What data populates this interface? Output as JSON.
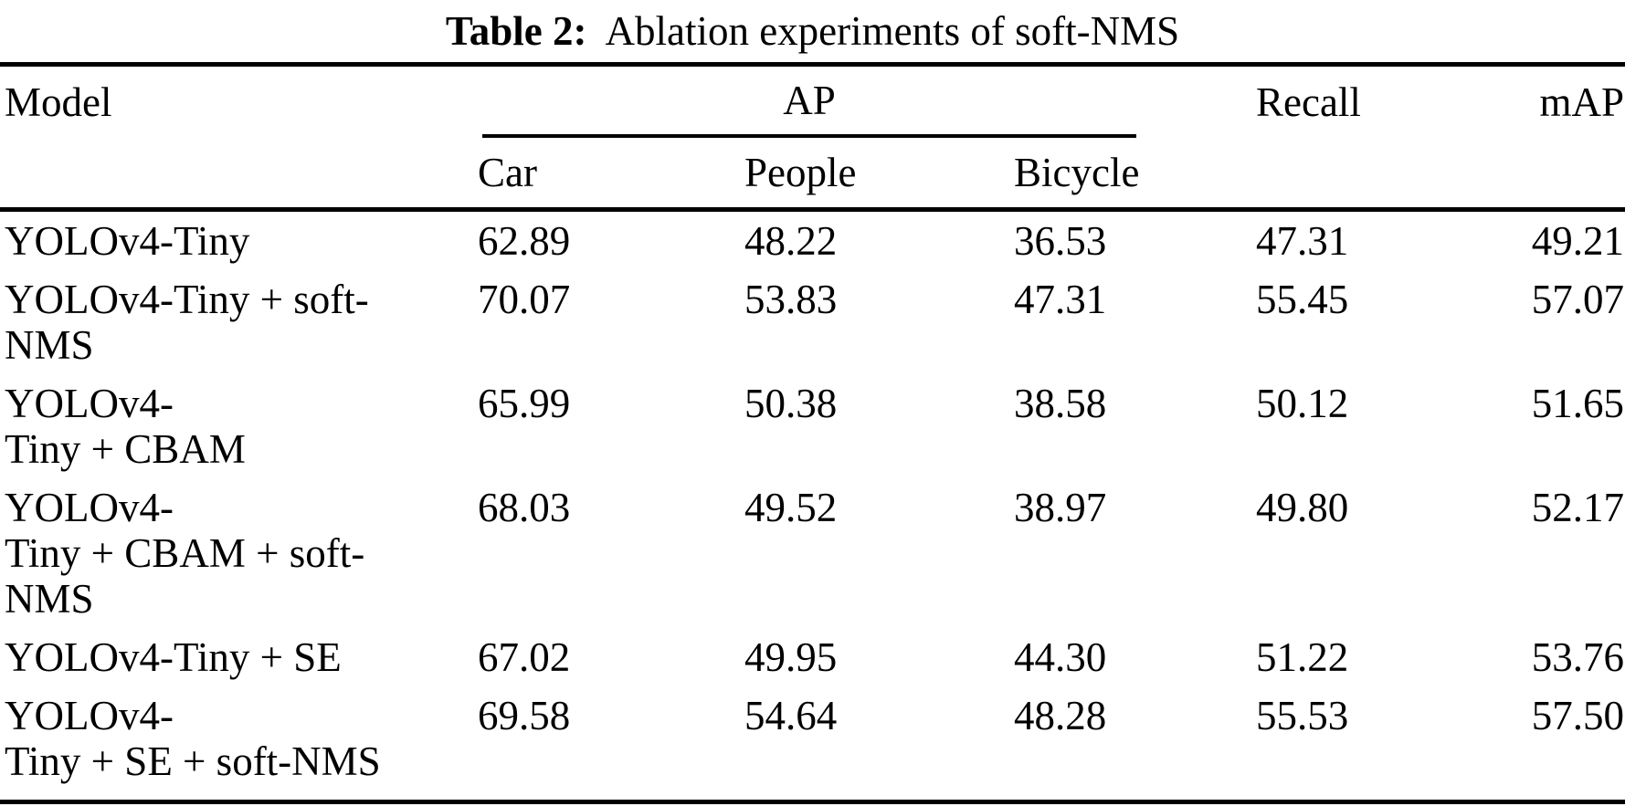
{
  "caption": {
    "label": "Table 2:",
    "text": "Ablation experiments of soft-NMS"
  },
  "table": {
    "columns": {
      "model": "Model",
      "ap_group": "AP",
      "ap_sub": [
        "Car",
        "People",
        "Bicycle"
      ],
      "recall": "Recall",
      "map": "mAP"
    },
    "rows": [
      {
        "model_lines": [
          "YOLOv4-Tiny"
        ],
        "car": "62.89",
        "people": "48.22",
        "bicycle": "36.53",
        "recall": "47.31",
        "map": "49.21"
      },
      {
        "model_lines": [
          "YOLOv4-Tiny + soft-",
          "NMS"
        ],
        "car": "70.07",
        "people": "53.83",
        "bicycle": "47.31",
        "recall": "55.45",
        "map": "57.07"
      },
      {
        "model_lines": [
          "YOLOv4-",
          "Tiny + CBAM"
        ],
        "car": "65.99",
        "people": "50.38",
        "bicycle": "38.58",
        "recall": "50.12",
        "map": "51.65"
      },
      {
        "model_lines": [
          "YOLOv4-",
          "Tiny + CBAM + soft-",
          "NMS"
        ],
        "car": "68.03",
        "people": "49.52",
        "bicycle": "38.97",
        "recall": "49.80",
        "map": "52.17"
      },
      {
        "model_lines": [
          "YOLOv4-Tiny + SE"
        ],
        "car": "67.02",
        "people": "49.95",
        "bicycle": "44.30",
        "recall": "51.22",
        "map": "53.76"
      },
      {
        "model_lines": [
          "YOLOv4-",
          "Tiny + SE + soft-NMS"
        ],
        "car": "69.58",
        "people": "54.64",
        "bicycle": "48.28",
        "recall": "55.53",
        "map": "57.50"
      }
    ]
  },
  "colors": {
    "text": "#000000",
    "background": "#ffffff",
    "rule": "#000000"
  }
}
